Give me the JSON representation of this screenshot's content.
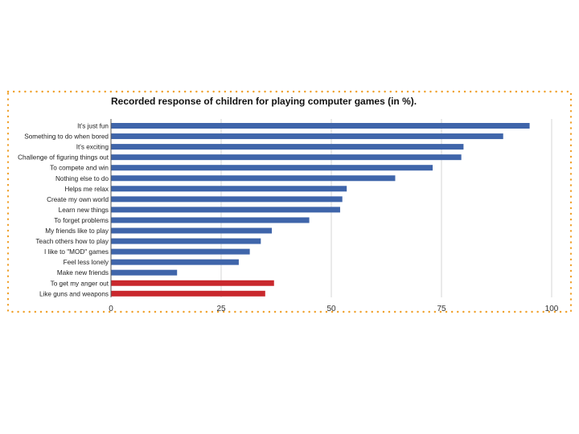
{
  "chart_data": {
    "type": "bar",
    "orientation": "horizontal",
    "title": "Recorded response of children for playing computer games (in %).",
    "xlabel": "",
    "ylabel": "",
    "xlim": [
      0,
      100
    ],
    "xticks": [
      0,
      25,
      50,
      75,
      100
    ],
    "grid": true,
    "categories": [
      "It's just fun",
      "Something to do when bored",
      "It's exciting",
      "Challenge of figuring things out",
      "To compete and win",
      "Nothing else to do",
      "Helps me relax",
      "Create my own world",
      "Learn new things",
      "To forget problems",
      "My friends like to play",
      "Teach others how to play",
      "I like to \"MOD\" games",
      "Feel less lonely",
      "Make new friends",
      "To get my anger out",
      "Like guns and weapons"
    ],
    "values": [
      95,
      89,
      80,
      79.5,
      73,
      64.5,
      53.5,
      52.5,
      52,
      45,
      36.5,
      34,
      31.5,
      29,
      15,
      37,
      35
    ],
    "bar_colors": [
      "#3f65aa",
      "#3f65aa",
      "#3f65aa",
      "#3f65aa",
      "#3f65aa",
      "#3f65aa",
      "#3f65aa",
      "#3f65aa",
      "#3f65aa",
      "#3f65aa",
      "#3f65aa",
      "#3f65aa",
      "#3f65aa",
      "#3f65aa",
      "#3f65aa",
      "#c9282d",
      "#c9282d"
    ]
  },
  "colors": {
    "frame": "#f0a12b",
    "primary_bar": "#3f65aa",
    "highlight_bar": "#c9282d"
  }
}
